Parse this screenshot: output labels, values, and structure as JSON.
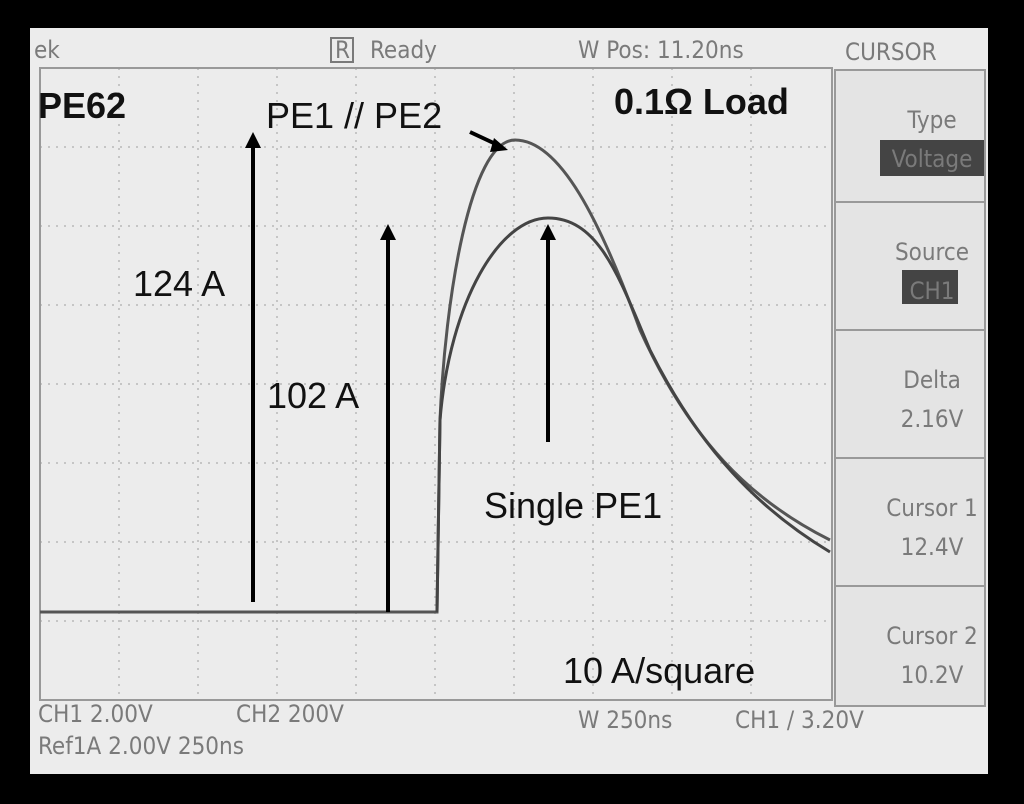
{
  "header": {
    "brand": "ek",
    "state_icon": "R",
    "state": "Ready",
    "position": "W Pos: 11.20ns",
    "menu_title": "CURSOR"
  },
  "annotations": {
    "model": "PE62",
    "parallel": "PE1 // PE2",
    "load": "0.1Ω Load",
    "peak_parallel": "124 A",
    "peak_single": "102 A",
    "single": "Single PE1",
    "scale": "10 A/square"
  },
  "menu": [
    {
      "label": "Type",
      "value": "Voltage"
    },
    {
      "label": "Source",
      "value": "CH1"
    },
    {
      "label": "Delta",
      "value": "2.16V"
    },
    {
      "label": "Cursor 1",
      "value": "12.4V"
    },
    {
      "label": "Cursor 2",
      "value": "10.2V"
    }
  ],
  "footer": {
    "ch1": "CH1 2.00V",
    "ch2": "CH2 200V",
    "ref": "Ref1A 2.00V 250ns",
    "timebase": "W 250ns",
    "trigger": "CH1 / 3.20V"
  }
}
